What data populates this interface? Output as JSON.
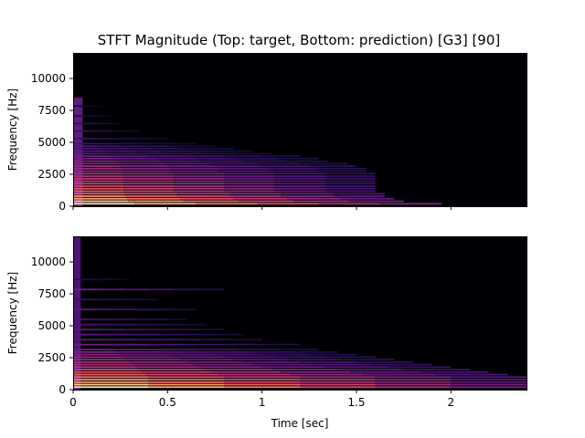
{
  "chart_data": {
    "type": "heatmap",
    "title": "STFT Magnitude (Top: target, Bottom: prediction) [G3] [90]",
    "colormap": "magma",
    "grid": false,
    "legend": "none",
    "shared_x": {
      "label": "Time [sec]",
      "range": [
        0,
        2.4
      ],
      "ticks": [
        0,
        0.5,
        1,
        1.5,
        2
      ],
      "tick_labels": [
        "0",
        "0.5",
        "1",
        "1.5",
        "2"
      ]
    },
    "panels": [
      {
        "name": "target",
        "ylabel": "Frequency [Hz]",
        "ylim": [
          0,
          12000
        ],
        "yticks": [
          0,
          2500,
          5000,
          7500,
          10000
        ],
        "ytick_labels": [
          "0",
          "2500",
          "5000",
          "7500",
          "10000"
        ],
        "harmonics": [
          {
            "freq": 196,
            "end": 1.95,
            "mag": 1.0
          },
          {
            "freq": 392,
            "end": 1.75,
            "mag": 0.95
          },
          {
            "freq": 588,
            "end": 1.7,
            "mag": 0.85
          },
          {
            "freq": 784,
            "end": 1.65,
            "mag": 0.8
          },
          {
            "freq": 980,
            "end": 1.65,
            "mag": 0.7
          },
          {
            "freq": 1176,
            "end": 1.6,
            "mag": 0.7
          },
          {
            "freq": 1372,
            "end": 1.6,
            "mag": 0.65
          },
          {
            "freq": 1568,
            "end": 1.6,
            "mag": 0.6
          },
          {
            "freq": 1764,
            "end": 1.6,
            "mag": 0.6
          },
          {
            "freq": 1960,
            "end": 1.6,
            "mag": 0.55
          },
          {
            "freq": 2156,
            "end": 1.6,
            "mag": 0.55
          },
          {
            "freq": 2352,
            "end": 1.6,
            "mag": 0.5
          },
          {
            "freq": 2548,
            "end": 1.6,
            "mag": 0.5
          },
          {
            "freq": 2744,
            "end": 1.55,
            "mag": 0.45
          },
          {
            "freq": 2940,
            "end": 1.55,
            "mag": 0.45
          },
          {
            "freq": 3136,
            "end": 1.5,
            "mag": 0.45
          },
          {
            "freq": 3332,
            "end": 1.45,
            "mag": 0.4
          },
          {
            "freq": 3528,
            "end": 1.35,
            "mag": 0.4
          },
          {
            "freq": 3724,
            "end": 1.3,
            "mag": 0.35
          },
          {
            "freq": 3920,
            "end": 1.2,
            "mag": 0.35
          },
          {
            "freq": 4116,
            "end": 1.05,
            "mag": 0.3
          },
          {
            "freq": 4312,
            "end": 0.95,
            "mag": 0.3
          },
          {
            "freq": 4508,
            "end": 0.85,
            "mag": 0.25
          },
          {
            "freq": 4704,
            "end": 0.75,
            "mag": 0.25
          },
          {
            "freq": 4900,
            "end": 0.65,
            "mag": 0.22
          },
          {
            "freq": 5292,
            "end": 0.5,
            "mag": 0.2
          },
          {
            "freq": 5880,
            "end": 0.35,
            "mag": 0.2
          },
          {
            "freq": 6468,
            "end": 0.25,
            "mag": 0.18
          },
          {
            "freq": 7056,
            "end": 0.2,
            "mag": 0.15
          },
          {
            "freq": 7840,
            "end": 0.15,
            "mag": 0.12
          }
        ],
        "onset": {
          "end": 0.05,
          "max_freq": 8500,
          "mag": 0.55
        }
      },
      {
        "name": "prediction",
        "ylabel": "Frequency [Hz]",
        "ylim": [
          0,
          12000
        ],
        "yticks": [
          0,
          2500,
          5000,
          7500,
          10000
        ],
        "ytick_labels": [
          "0",
          "2500",
          "5000",
          "7500",
          "10000"
        ],
        "harmonics": [
          {
            "freq": 196,
            "end": 2.4,
            "mag": 1.0
          },
          {
            "freq": 392,
            "end": 2.4,
            "mag": 0.95
          },
          {
            "freq": 588,
            "end": 2.4,
            "mag": 0.85
          },
          {
            "freq": 784,
            "end": 2.4,
            "mag": 0.8
          },
          {
            "freq": 980,
            "end": 2.4,
            "mag": 0.75
          },
          {
            "freq": 1176,
            "end": 2.3,
            "mag": 0.7
          },
          {
            "freq": 1372,
            "end": 2.2,
            "mag": 0.65
          },
          {
            "freq": 1568,
            "end": 2.1,
            "mag": 0.6
          },
          {
            "freq": 1764,
            "end": 2.0,
            "mag": 0.55
          },
          {
            "freq": 1960,
            "end": 1.9,
            "mag": 0.5
          },
          {
            "freq": 2156,
            "end": 1.8,
            "mag": 0.5
          },
          {
            "freq": 2352,
            "end": 1.7,
            "mag": 0.45
          },
          {
            "freq": 2548,
            "end": 1.6,
            "mag": 0.45
          },
          {
            "freq": 2744,
            "end": 1.5,
            "mag": 0.4
          },
          {
            "freq": 2940,
            "end": 1.4,
            "mag": 0.4
          },
          {
            "freq": 3136,
            "end": 1.3,
            "mag": 0.35
          },
          {
            "freq": 3528,
            "end": 1.2,
            "mag": 0.35
          },
          {
            "freq": 3920,
            "end": 1.0,
            "mag": 0.3
          },
          {
            "freq": 4312,
            "end": 0.9,
            "mag": 0.3
          },
          {
            "freq": 4704,
            "end": 0.8,
            "mag": 0.3
          },
          {
            "freq": 5096,
            "end": 0.7,
            "mag": 0.25
          },
          {
            "freq": 5488,
            "end": 0.6,
            "mag": 0.25
          },
          {
            "freq": 6272,
            "end": 0.65,
            "mag": 0.3
          },
          {
            "freq": 7056,
            "end": 0.45,
            "mag": 0.2
          },
          {
            "freq": 7840,
            "end": 0.8,
            "mag": 0.35
          },
          {
            "freq": 8624,
            "end": 0.3,
            "mag": 0.15
          }
        ],
        "onset": {
          "end": 0.04,
          "max_freq": 12000,
          "mag": 0.45
        }
      }
    ]
  }
}
